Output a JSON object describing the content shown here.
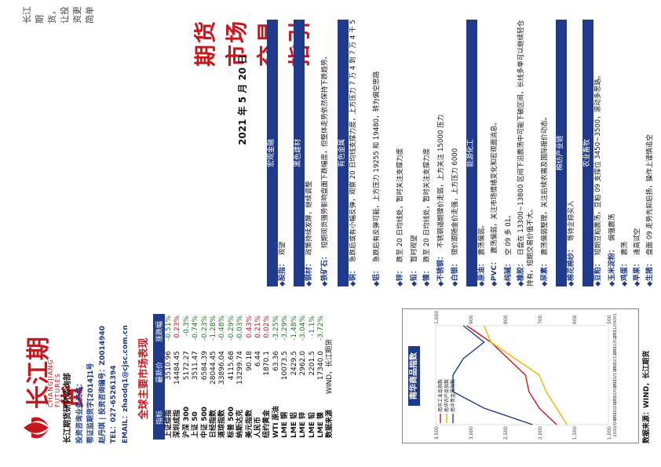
{
  "brand": {
    "cn": "长江期货",
    "en": "CHANGJIANG FUTURES",
    "slogan": "长江期货，让投资更简单"
  },
  "research": {
    "heading": "长江期货研究咨询部",
    "items": [
      "投资咨询业务资格：",
      "鄂证监期货字[2014]1号",
      "赵丹琪 | 投资咨询编号：Z0014940",
      "TEL：027-65261394",
      "EMAIL：zhaodq1@cjsc.com.cn"
    ]
  },
  "market": {
    "title": "全球主要市场表现",
    "headers": [
      "指标",
      "最新价",
      "涨跌幅"
    ],
    "rows": [
      {
        "name": "上证综指",
        "value": "3510.96",
        "change": "-0.51%",
        "dir": "dn"
      },
      {
        "name": "深圳成指",
        "value": "14484.45",
        "change": "0.23%",
        "dir": "up"
      },
      {
        "name": "沪深 300",
        "value": "5172.27",
        "change": "-0.3%",
        "dir": "dn"
      },
      {
        "name": "上证 50",
        "value": "3511.47",
        "change": "-0.74%",
        "dir": "dn"
      },
      {
        "name": "中证 500",
        "value": "6584.39",
        "change": "-0.23%",
        "dir": "dn"
      },
      {
        "name": "日经指数",
        "value": "28044.45",
        "change": "-1.28%",
        "dir": "dn"
      },
      {
        "name": "道琼指数",
        "value": "33896.04",
        "change": "-0.48%",
        "dir": "dn"
      },
      {
        "name": "标普 500",
        "value": "4115.68",
        "change": "-0.29%",
        "dir": "dn"
      },
      {
        "name": "纳斯达克",
        "value": "13299.74",
        "change": "-0.03%",
        "dir": "dn"
      },
      {
        "name": "美元指数",
        "value": "90.18",
        "change": "0.43%",
        "dir": "up"
      },
      {
        "name": "人民币",
        "value": "6.44",
        "change": "0.21%",
        "dir": "up"
      },
      {
        "name": "纽约黄金",
        "value": "1870.1",
        "change": "0.02%",
        "dir": "up"
      },
      {
        "name": "WTI 原油",
        "value": "63.36",
        "change": "-3.25%",
        "dir": "dn"
      },
      {
        "name": "LME 铜",
        "value": "10073.5",
        "change": "-3.29%",
        "dir": "dn"
      },
      {
        "name": "LME 铝",
        "value": "2429.5",
        "change": "-1.48%",
        "dir": "dn"
      },
      {
        "name": "LME 锌",
        "value": "2962.0",
        "change": "-3.04%",
        "dir": "dn"
      },
      {
        "name": "LME 铅",
        "value": "2201.5",
        "change": "-1.1%",
        "dir": "dn"
      },
      {
        "name": "LME 镍",
        "value": "17340.0",
        "change": "-3.72%",
        "dir": "dn"
      },
      {
        "name": "数据来源",
        "value": "WIND，长江期货",
        "change": "",
        "dir": ""
      }
    ]
  },
  "chart_data": {
    "type": "line",
    "title": "南华商品指数",
    "x": [
      "2020/04/01",
      "2020/06/01",
      "2020/08/01",
      "2020/10/01",
      "2020/12/01",
      "2021/02/01",
      "2021/04/01"
    ],
    "series": [
      {
        "name": "南华工业品指数",
        "axis": "left",
        "values": [
          1750,
          2000,
          2150,
          2200,
          2450,
          2700,
          3050
        ]
      },
      {
        "name": "南华农产品指数",
        "axis": "left",
        "values": [
          1600,
          1750,
          1900,
          2000,
          2350,
          2700,
          2800
        ]
      },
      {
        "name": "南华贵金属指数",
        "axis": "right",
        "values": [
          720,
          860,
          950,
          950,
          920,
          860,
          920
        ]
      }
    ],
    "left_axis": {
      "ticks": [
        "1,000",
        "1,500",
        "2,000",
        "2,500",
        "3,000",
        "3,500"
      ]
    },
    "right_axis": {
      "ticks": [
        "500",
        "600",
        "700",
        "800",
        "900",
        "1,000"
      ]
    },
    "source": "数据来源：WIND，长江期货"
  },
  "source_left": "数据来源：WIND，长江期货",
  "title": "期货市场交易指引",
  "date": "2021 年 5 月 20 日",
  "sections": {
    "macro": "宏观金融",
    "black": "黑色建材",
    "nonferrous": "有色金属",
    "energy": "能源化工",
    "cotton": "棉纺产业链",
    "agri": "农业畜牧"
  },
  "items": {
    "stock": {
      "label": "◆股指：",
      "text": "观望"
    },
    "steel": {
      "label": "◆钢材：",
      "text": "政策持续发酵，继续调整"
    },
    "ore": {
      "label": "◆铁矿石：",
      "text": "短期现货强势影响盘面下跌幅度，但整体走势依然保持下跌趋势。"
    },
    "copper": {
      "label": "◆铜：",
      "text": "急跌后或有小幅反弹，观察 20 日均线支撑力度，上方压力 7 万 4 到 7 万 4 千 5"
    },
    "aluminum": {
      "label": "◆铝：",
      "text": "急跌后有反弹可能，上方压力 19255 和 19480，转为偏空思路"
    },
    "zinc": {
      "label": "◆锌：",
      "text": "跌至 20 日均线处，暂时关注支撑力度"
    },
    "lead": {
      "label": "◆铅：",
      "text": "暂时观望"
    },
    "nickel": {
      "label": "◆镍：",
      "text": "跌至 20 日均线处，暂时关注支撑力度"
    },
    "stainless": {
      "label": "◆不锈钢：",
      "text": "不锈钢逼期镍价走弱，上方关注 15000 压力"
    },
    "silver": {
      "label": "◆白银：",
      "text": "银价跟随金价走强，上方压力 6000"
    },
    "crude": {
      "label": "◆原油：",
      "text": "震荡偏弱。"
    },
    "pvc": {
      "label": "◆PVC：",
      "text": "震荡偏弱，关注市场情绪变化和宏观面消息。"
    },
    "soda": {
      "label": "◆纯碱：",
      "text": "空 09 多 01。"
    },
    "rubber": {
      "label": "◆橡胶：",
      "text": "日盘在 13300~13800 区间下沿震荡中可能下破区间，长线多单可以继续轻仓持有，短期交易价值不大。"
    },
    "urea": {
      "label": "◆尿素：",
      "text": "震荡偏弱整理，关注后续农需及国际报价动态。"
    },
    "cotton": {
      "label": "◆棉花棉纱：",
      "text": "等待企稳买入"
    },
    "meal": {
      "label": "◆豆粕：",
      "text": "短期豆粕震荡，豆粕 09 支撑位 3450~3500，滚动多思路。"
    },
    "corn": {
      "label": "◆玉米淀粉：",
      "text": "偏强震荡"
    },
    "pig": {
      "label": "◆生猪：",
      "text": "盘面 09 走势先抑后扬，操作上谨慎追空"
    },
    "egg": {
      "label": "◆鸡蛋：",
      "text": "震荡"
    },
    "apple": {
      "label": "◆苹果：",
      "text": "逢高试空"
    }
  }
}
